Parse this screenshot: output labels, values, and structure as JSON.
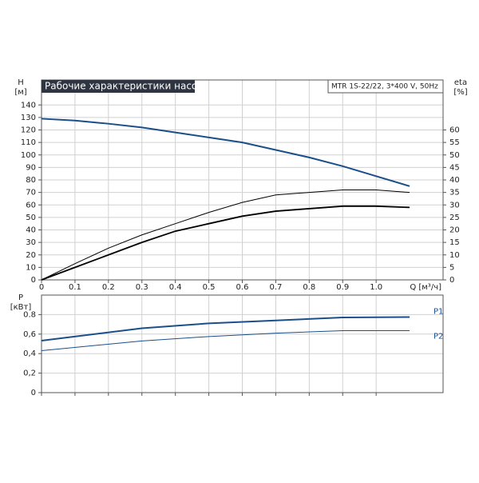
{
  "chart_data": [
    {
      "type": "line",
      "title": "Рабочие характеристики насоса",
      "subtitle": "MTR 1S-22/22, 3*400 V, 50Hz",
      "ylabel": [
        "H",
        "[м]"
      ],
      "y2label": [
        "eta",
        "[%]"
      ],
      "xlabel": "Q [м³/ч]",
      "x": [
        0,
        0.1,
        0.2,
        0.3,
        0.4,
        0.5,
        0.6,
        0.7,
        0.8,
        0.9,
        1.0,
        1.1
      ],
      "xlim": [
        0,
        1.2
      ],
      "xticks": [
        0,
        0.1,
        0.2,
        0.3,
        0.4,
        0.5,
        0.6,
        0.7,
        0.8,
        0.9,
        {
          "value": 1,
          "label": "1.0"
        }
      ],
      "ylim": [
        0,
        160
      ],
      "yticks": [
        0,
        10,
        20,
        30,
        40,
        50,
        60,
        70,
        80,
        90,
        100,
        110,
        120,
        130,
        140
      ],
      "y2lim": [
        0,
        80
      ],
      "y2ticks": [
        0,
        5,
        10,
        15,
        20,
        25,
        30,
        35,
        40,
        45,
        50,
        55,
        60
      ],
      "grid": true,
      "series": [
        {
          "color": "#1a4f8a",
          "values": [
            129,
            127.5,
            125,
            122,
            118,
            114,
            110,
            104,
            98,
            91,
            83,
            75
          ]
        },
        {
          "color": "#000000",
          "axis": "y2",
          "values": [
            0,
            6.5,
            12.7,
            18,
            22.5,
            27,
            31,
            34,
            35,
            36,
            36,
            35
          ]
        },
        {
          "color": "#000000",
          "axis": "y2",
          "values": [
            0,
            5,
            10,
            15,
            19.5,
            22.5,
            25.5,
            27.5,
            28.5,
            29.5,
            29.5,
            29
          ]
        }
      ]
    },
    {
      "type": "line",
      "ylabel": [
        "P",
        "[кВт]"
      ],
      "x": [
        0,
        0.3,
        0.5,
        0.7,
        0.9,
        1.1
      ],
      "xlim": [
        0,
        1.2
      ],
      "xticks": [
        0,
        0.1,
        0.2,
        0.3,
        0.4,
        0.5,
        0.6,
        0.7,
        0.8,
        0.9,
        1
      ],
      "ylim": [
        0,
        1.0
      ],
      "yticks": [
        0,
        {
          "value": 0.2,
          "label": "0,2"
        },
        {
          "value": 0.4,
          "label": "0,4"
        },
        {
          "value": 0.6,
          "label": "0,6"
        },
        0.8
      ],
      "grid": true,
      "series": [
        {
          "name": "P1",
          "color": "#1a4f8a",
          "values": [
            0.533,
            0.66,
            0.71,
            0.74,
            0.77,
            0.775
          ]
        },
        {
          "name": "P2",
          "color": "#1a4f8a",
          "values": [
            0.43,
            0.53,
            0.575,
            0.61,
            0.635,
            0.635
          ]
        }
      ]
    }
  ]
}
